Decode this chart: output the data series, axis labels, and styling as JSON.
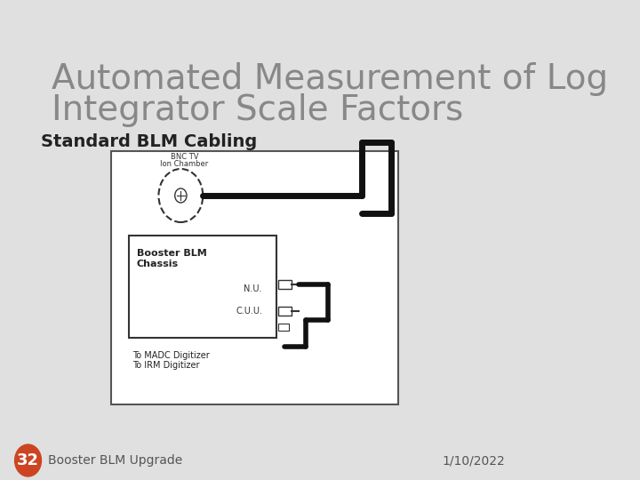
{
  "title_line1": "Automated Measurement of Log",
  "title_line2": "Integrator Scale Factors",
  "subtitle": "Standard BLM Cabling",
  "footer_left": "Booster BLM Upgrade",
  "footer_right": "1/10/2022",
  "footer_badge": "32",
  "bg_color": "#e8e8e8",
  "slide_bg": "#e0e0e0",
  "title_color": "#888888",
  "subtitle_color": "#222222",
  "footer_badge_color": "#cc4422",
  "diagram_box_color": "#ffffff",
  "diagram_border_color": "#333333"
}
